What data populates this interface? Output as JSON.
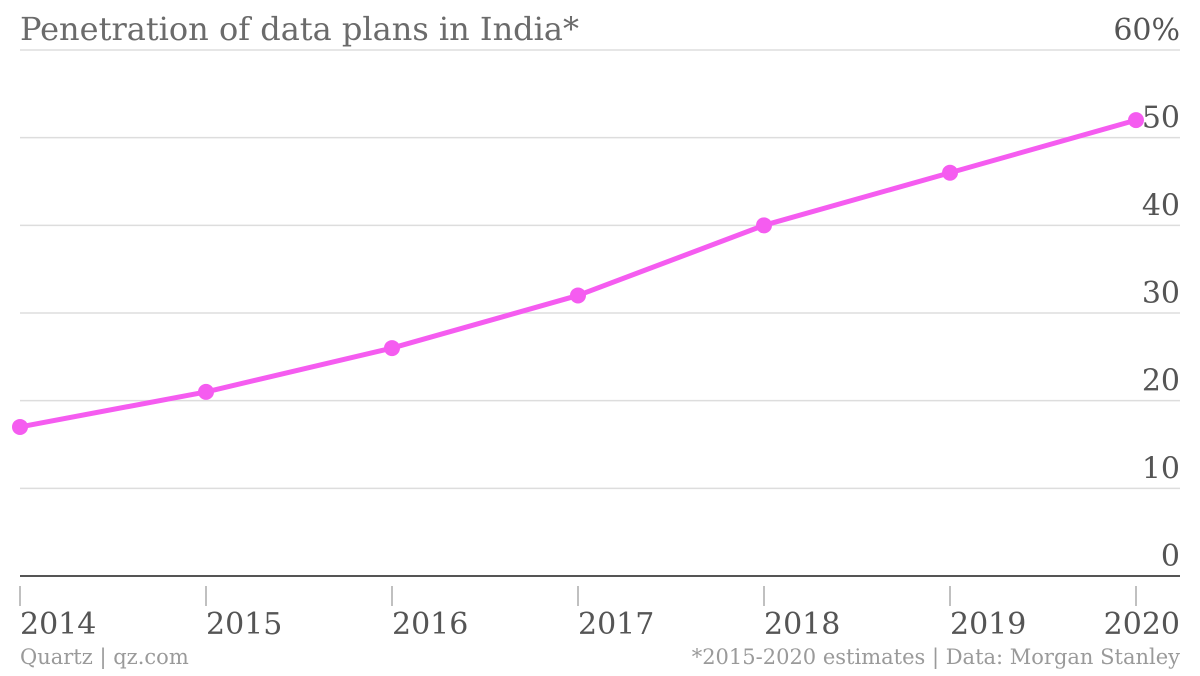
{
  "chart_data": {
    "type": "line",
    "title": "Penetration of data plans in India*",
    "x": [
      "2014",
      "2015",
      "2016",
      "2017",
      "2018",
      "2019",
      "2020"
    ],
    "series": [
      {
        "values": [
          17,
          21,
          26,
          32,
          40,
          46,
          52
        ]
      }
    ],
    "ylim": [
      0,
      60
    ],
    "y_ticks": [
      "0",
      "10",
      "20",
      "30",
      "40",
      "50",
      "60%"
    ],
    "y_tick_values": [
      0,
      10,
      20,
      30,
      40,
      50,
      60
    ],
    "y_axis_position": "right",
    "grid": true,
    "line_color": "#f55cf0",
    "source": "*2015-2020 estimates | Data: Morgan Stanley",
    "credit": "Quartz | qz.com"
  }
}
